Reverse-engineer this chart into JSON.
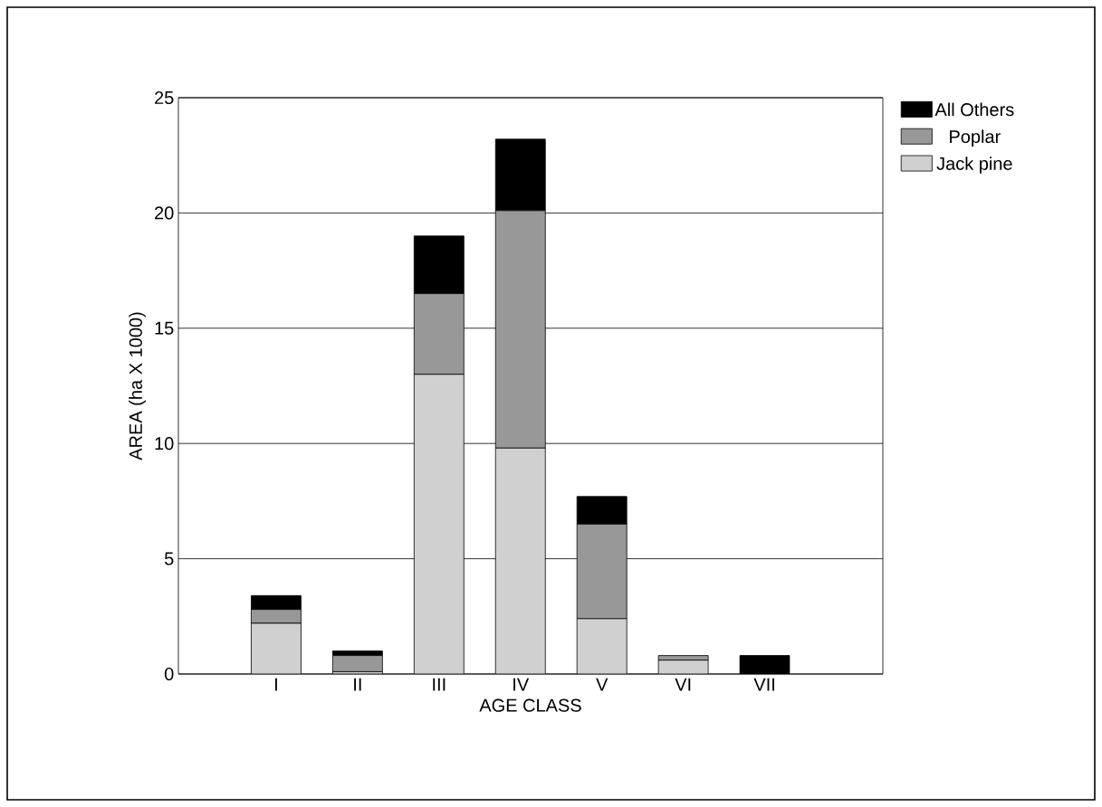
{
  "chart_data": {
    "type": "bar",
    "stacked": true,
    "xlabel": "AGE CLASS",
    "ylabel": "AREA (ha X 1000)",
    "categories": [
      "I",
      "II",
      "III",
      "IV",
      "V",
      "VI",
      "VII"
    ],
    "series": [
      {
        "name": "Jack pine",
        "color": "#d0d0d0",
        "values": [
          2.2,
          0.1,
          13.0,
          9.8,
          2.4,
          0.6,
          0
        ]
      },
      {
        "name": "Poplar",
        "color": "#989898",
        "values": [
          0.6,
          0.7,
          3.5,
          10.3,
          4.1,
          0.2,
          0
        ]
      },
      {
        "name": "All Others",
        "color": "#000000",
        "values": [
          0.6,
          0.2,
          2.5,
          3.1,
          1.2,
          0,
          0.8
        ]
      }
    ],
    "ylim": [
      0,
      25
    ],
    "yticks": [
      0,
      5,
      10,
      15,
      20,
      25
    ],
    "grid": "y",
    "legend": "top right"
  }
}
